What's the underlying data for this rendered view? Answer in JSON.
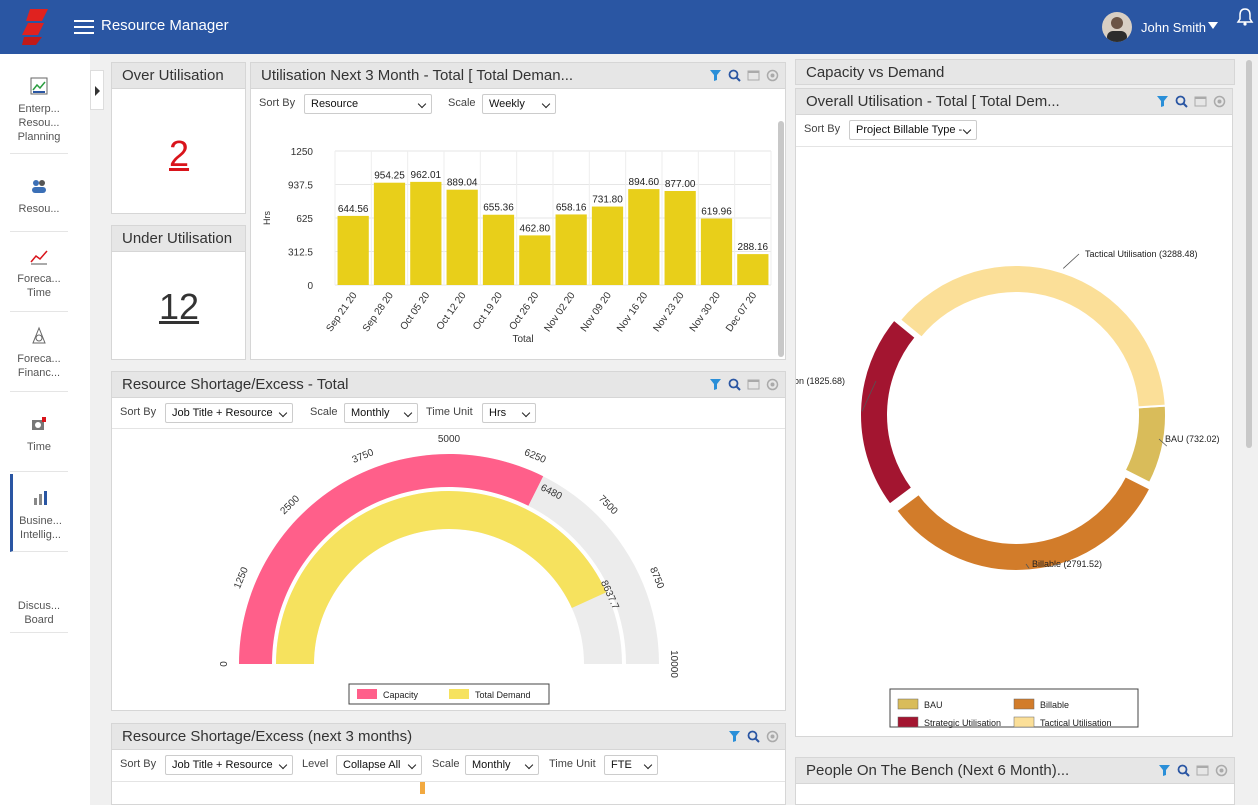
{
  "header": {
    "app_title": "Resource Manager",
    "user_name": "John Smith"
  },
  "sidebar": {
    "items": [
      {
        "label": "Enterp... Resou... Planning",
        "icon": "enterprise-planning-icon"
      },
      {
        "label": "Resou...",
        "icon": "resources-icon"
      },
      {
        "label": "Foreca... Time",
        "icon": "forecast-time-icon"
      },
      {
        "label": "Foreca... Financ...",
        "icon": "forecast-finance-icon"
      },
      {
        "label": "Time",
        "icon": "time-icon"
      },
      {
        "label": "Busine... Intellig...",
        "icon": "business-intelligence-icon"
      },
      {
        "label": "Discus... Board",
        "icon": ""
      }
    ]
  },
  "over_util": {
    "title": "Over Utilisation",
    "value": "2",
    "color": "#d9141b"
  },
  "under_util": {
    "title": "Under Utilisation",
    "value": "12",
    "color": "#333333"
  },
  "util3m": {
    "title": "Utilisation Next 3 Month - Total [ Total Deman...",
    "sort_label": "Sort By",
    "sort_value": "Resource",
    "scale_label": "Scale",
    "scale_value": "Weekly"
  },
  "shortage": {
    "title": "Resource Shortage/Excess - Total",
    "sort_label": "Sort By",
    "sort_value": "Job Title + Resource",
    "scale_label": "Scale",
    "scale_value": "Monthly",
    "unit_label": "Time Unit",
    "unit_value": "Hrs"
  },
  "shortage3m": {
    "title": "Resource Shortage/Excess (next 3 months)",
    "sort_label": "Sort By",
    "sort_value": "Job Title + Resource",
    "level_label": "Level",
    "level_value": "Collapse All",
    "scale_label": "Scale",
    "scale_value": "Monthly",
    "unit_label": "Time Unit",
    "unit_value": "FTE"
  },
  "capacity": {
    "title": "Capacity vs Demand"
  },
  "overall": {
    "title": "Overall Utilisation - Total [ Total Dem...",
    "sort_label": "Sort By",
    "sort_value": "Project Billable Type -"
  },
  "bench": {
    "title": "People On The Bench (Next 6 Month)..."
  },
  "chart_data": [
    {
      "type": "bar",
      "categories": [
        "Sep 21 20",
        "Sep 28 20",
        "Oct 05 20",
        "Oct 12 20",
        "Oct 19 20",
        "Oct 26 20",
        "Nov 02 20",
        "Nov 09 20",
        "Nov 16 20",
        "Nov 23 20",
        "Nov 30 20",
        "Dec 07 20"
      ],
      "values": [
        644.56,
        954.25,
        962.01,
        889.04,
        655.36,
        462.8,
        658.16,
        731.8,
        894.6,
        877.0,
        619.96,
        288.16
      ],
      "value_labels": [
        "644.56",
        "954.25",
        "962.01",
        "889.04",
        "655.36",
        "462.80",
        "658.16",
        "731.80",
        "894.60",
        "877.00",
        "619.96",
        "288.16"
      ],
      "xlabel": "Total",
      "ylabel": "Hrs",
      "yticks": [
        "0",
        "312.5",
        "625",
        "937.5",
        "1250"
      ],
      "ylim": [
        0,
        1250
      ],
      "grid": true,
      "color": "#e8cf1a"
    },
    {
      "type": "gauge",
      "series": [
        {
          "name": "Capacity",
          "value": 6480,
          "value_label": "6480",
          "color": "#ff5f8a"
        },
        {
          "name": "Total Demand",
          "value": 8637.7,
          "value_label": "8637.7",
          "color": "#f6e25e"
        }
      ],
      "range": [
        0,
        10000
      ],
      "ticks": [
        "0",
        "1250",
        "2500",
        "3750",
        "5000",
        "6250",
        "7500",
        "8750",
        "10000"
      ],
      "legend": "bottom"
    },
    {
      "type": "pie",
      "categories": [
        "BAU",
        "Billable",
        "Strategic Utilisation",
        "Tactical Utilisation"
      ],
      "values": [
        732.02,
        2791.52,
        1825.68,
        3288.48
      ],
      "slice_labels": [
        "BAU (732.02)",
        "Billable (2791.52)",
        "on (1825.68)",
        "Tactical Utilisation (3288.48)"
      ],
      "colors": [
        "#d9bc5a",
        "#d27c2a",
        "#a31530",
        "#fbdf98"
      ],
      "donut": true,
      "legend": "bottom"
    }
  ]
}
